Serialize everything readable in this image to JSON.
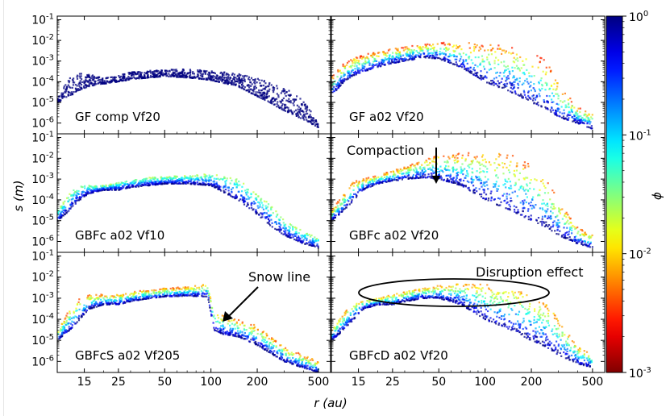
{
  "figure": {
    "ylabel": "s (m)",
    "xlabel": "r (au)",
    "colorbar_label": "ϕ",
    "colormap": "jet-reversed",
    "colorbar_ticks": [
      "10^0",
      "10^-1",
      "10^-2",
      "10^-3"
    ],
    "colorbar_tick_values": [
      1,
      0.1,
      0.01,
      0.001
    ],
    "colorbar_range": [
      0.001,
      1
    ],
    "x_ticks": [
      "15",
      "25",
      "50",
      "100",
      "200",
      "500"
    ],
    "y_ticks": [
      "10^-6",
      "10^-5",
      "10^-4",
      "10^-3",
      "10^-2",
      "10^-1"
    ],
    "annotations": {
      "compaction": "Compaction",
      "snow_line": "Snow line",
      "disruption": "Disruption effect"
    },
    "colors": {
      "low_phi": "#7f0000",
      "high_phi": "#00007f"
    }
  },
  "chart_data": [
    {
      "type": "scatter",
      "label": "GF comp Vf20",
      "xscale": "log",
      "yscale": "log",
      "xlim": [
        10,
        600
      ],
      "ylim": [
        3e-07,
        0.15
      ],
      "grid": false,
      "x": [
        10,
        12,
        14,
        16,
        20,
        25,
        30,
        40,
        50,
        70,
        100,
        150,
        200,
        300,
        400,
        500
      ],
      "s_upper": [
        2e-05,
        0.00015,
        0.0003,
        0.00025,
        0.00015,
        0.0002,
        0.0003,
        0.00035,
        0.0004,
        0.0004,
        0.00035,
        0.00025,
        0.00015,
        5e-05,
        1.5e-05,
        1e-06
      ],
      "s_lower": [
        1e-05,
        2e-05,
        4e-05,
        6e-05,
        8e-05,
        0.0001,
        0.00013,
        0.00016,
        0.00018,
        0.00016,
        0.00012,
        6e-05,
        2e-05,
        4e-06,
        1.5e-06,
        6e-07
      ],
      "phi_range": [
        1,
        1
      ]
    },
    {
      "type": "scatter",
      "label": "GF a02 Vf20",
      "xscale": "log",
      "yscale": "log",
      "xlim": [
        10,
        600
      ],
      "ylim": [
        3e-07,
        0.15
      ],
      "grid": false,
      "x": [
        10,
        12,
        14,
        16,
        20,
        25,
        30,
        40,
        50,
        70,
        100,
        150,
        200,
        250,
        300,
        400,
        500
      ],
      "s_upper": [
        0.0002,
        0.0008,
        0.0015,
        0.002,
        0.003,
        0.004,
        0.005,
        0.007,
        0.008,
        0.008,
        0.007,
        0.005,
        0.003,
        0.001,
        0.0001,
        6e-06,
        3e-06
      ],
      "s_lower": [
        2e-05,
        0.0001,
        0.0002,
        0.0003,
        0.0005,
        0.0008,
        0.001,
        0.0015,
        0.0013,
        0.0005,
        0.0001,
        3e-05,
        1e-05,
        5e-06,
        2e-06,
        1e-06,
        5e-07
      ],
      "phi_range": [
        0.003,
        1
      ]
    },
    {
      "type": "scatter",
      "label": "GBFc a02 Vf10",
      "xscale": "log",
      "yscale": "log",
      "xlim": [
        10,
        600
      ],
      "ylim": [
        3e-07,
        0.15
      ],
      "grid": false,
      "x": [
        10,
        12,
        14,
        16,
        20,
        25,
        30,
        40,
        50,
        70,
        100,
        150,
        200,
        250,
        300,
        400,
        500
      ],
      "s_upper": [
        3e-05,
        0.0002,
        0.0006,
        0.0005,
        0.0005,
        0.0007,
        0.0009,
        0.0012,
        0.0013,
        0.0015,
        0.0018,
        0.001,
        0.0002,
        5e-05,
        1e-05,
        3e-06,
        1.5e-06
      ],
      "s_lower": [
        1e-05,
        3e-05,
        0.0001,
        0.0002,
        0.0003,
        0.0003,
        0.0004,
        0.0005,
        0.0006,
        0.0006,
        0.0005,
        0.0001,
        2e-05,
        5e-06,
        2e-06,
        8e-07,
        5e-07
      ],
      "phi_range": [
        0.02,
        1
      ]
    },
    {
      "type": "scatter",
      "label": "GBFc a02 Vf20",
      "xscale": "log",
      "yscale": "log",
      "xlim": [
        10,
        600
      ],
      "ylim": [
        3e-07,
        0.15
      ],
      "grid": false,
      "x": [
        10,
        12,
        14,
        16,
        20,
        25,
        30,
        40,
        50,
        70,
        100,
        150,
        200,
        250,
        300,
        400,
        500
      ],
      "s_upper": [
        3e-05,
        0.0002,
        0.0008,
        0.001,
        0.0015,
        0.0025,
        0.004,
        0.008,
        0.015,
        0.018,
        0.02,
        0.015,
        0.005,
        0.001,
        0.0001,
        5e-06,
        2e-06
      ],
      "s_lower": [
        1e-05,
        3e-05,
        0.0001,
        0.0003,
        0.0006,
        0.0008,
        0.001,
        0.0012,
        0.001,
        0.0005,
        0.0001,
        3e-05,
        1e-05,
        5e-06,
        2e-06,
        8e-07,
        5e-07
      ],
      "phi_range": [
        0.004,
        1
      ]
    },
    {
      "type": "scatter",
      "label": "GBFcS a02 Vf205",
      "xscale": "log",
      "yscale": "log",
      "xlim": [
        10,
        600
      ],
      "ylim": [
        3e-07,
        0.15
      ],
      "grid": false,
      "x": [
        10,
        12,
        14,
        16,
        20,
        25,
        30,
        40,
        50,
        70,
        95,
        105,
        120,
        150,
        200,
        300,
        400,
        500
      ],
      "s_upper": [
        3e-05,
        0.0003,
        0.001,
        0.0015,
        0.0015,
        0.0015,
        0.002,
        0.0025,
        0.003,
        0.0035,
        0.005,
        0.0003,
        0.00015,
        0.0001,
        5e-05,
        5e-06,
        2e-06,
        1e-06
      ],
      "s_lower": [
        1e-05,
        3e-05,
        0.0001,
        0.0003,
        0.0005,
        0.0005,
        0.0007,
        0.001,
        0.0012,
        0.0013,
        0.0012,
        3e-05,
        2e-05,
        1.5e-05,
        6e-06,
        1e-06,
        5e-07,
        3e-07
      ],
      "phi_range": [
        0.004,
        1
      ]
    },
    {
      "type": "scatter",
      "label": "GBFcD a02 Vf20",
      "xscale": "log",
      "yscale": "log",
      "xlim": [
        10,
        600
      ],
      "ylim": [
        3e-07,
        0.15
      ],
      "grid": false,
      "x": [
        10,
        12,
        14,
        16,
        20,
        25,
        30,
        40,
        50,
        70,
        100,
        150,
        200,
        250,
        300,
        400,
        500
      ],
      "s_upper": [
        3e-05,
        0.0002,
        0.0006,
        0.0008,
        0.001,
        0.0015,
        0.002,
        0.003,
        0.004,
        0.005,
        0.0045,
        0.003,
        0.0015,
        0.0005,
        0.0001,
        5e-06,
        2e-06
      ],
      "s_lower": [
        1e-05,
        3e-05,
        0.0001,
        0.0003,
        0.0005,
        0.0005,
        0.0007,
        0.001,
        0.001,
        0.0005,
        0.0001,
        3e-05,
        1e-05,
        5e-06,
        2e-06,
        8e-07,
        5e-07
      ],
      "phi_range": [
        0.006,
        1
      ]
    }
  ]
}
